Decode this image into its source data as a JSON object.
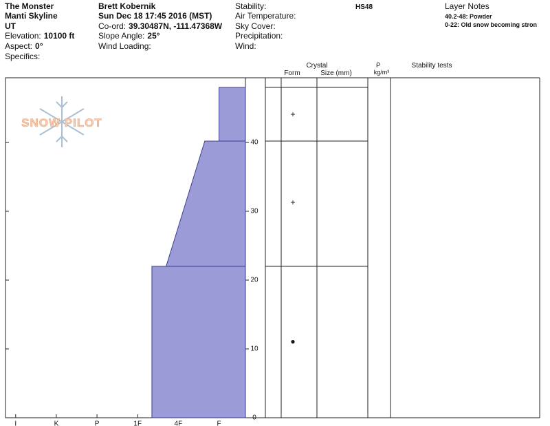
{
  "header": {
    "location": [
      "The Monster",
      "Manti Skyline",
      "UT"
    ],
    "elevation": {
      "label": "Elevation:",
      "value": "10100 ft"
    },
    "aspect": {
      "label": "Aspect:",
      "value": "0°"
    },
    "specifics": "Specifics:",
    "observer": "Brett Kobernik",
    "datetime": "Sun Dec 18 17:45 2016 (MST)",
    "coord": {
      "label": "Co-ord:",
      "value": "39.30487N, -111.47368W"
    },
    "slope": {
      "label": "Slope Angle:",
      "value": "25°"
    },
    "wind_loading": "Wind Loading:",
    "conditions": [
      "Stability:",
      "Air Temperature:",
      "Sky Cover:",
      "Precipitation:",
      "Wind:"
    ],
    "hs": "HS48",
    "layer_notes_title": "Layer Notes",
    "layer_notes": [
      "40.2-48: Powder",
      "0-22: Old snow becoming stron"
    ],
    "logo": "SNOW PILOT"
  },
  "chart_data": {
    "type": "hardness-profile",
    "color": "#9b9bd8",
    "edge_color": "#3c3c8c",
    "ylim": [
      0,
      49.4
    ],
    "yticks": [
      0,
      10,
      20,
      30,
      40
    ],
    "xlim": [
      6.25,
      0.35
    ],
    "xticks": [
      {
        "value": 6,
        "label": "I"
      },
      {
        "value": 5,
        "label": "K"
      },
      {
        "value": 4,
        "label": "P"
      },
      {
        "value": 3,
        "label": "1F"
      },
      {
        "value": 2,
        "label": "4F"
      },
      {
        "value": 1,
        "label": "F"
      }
    ],
    "layers": [
      {
        "bottom": 0,
        "top": 22,
        "hardness_bottom": 2.65,
        "hardness_top": 2.65
      },
      {
        "bottom": 22,
        "top": 40.2,
        "hardness_bottom": 2.3,
        "hardness_top": 1.35
      },
      {
        "bottom": 40.2,
        "top": 48,
        "hardness_bottom": 1,
        "hardness_top": 1
      }
    ],
    "grains": [
      {
        "height": 44,
        "form": "+"
      },
      {
        "height": 31.2,
        "form": "+"
      },
      {
        "height": 11,
        "form": "●"
      }
    ],
    "table_headers": {
      "crystal": "Crystal",
      "form": "Form",
      "size": "Size (mm)",
      "density_symbol": "ρ",
      "density_unit": "kg/m³",
      "stability": "Stability tests"
    }
  }
}
